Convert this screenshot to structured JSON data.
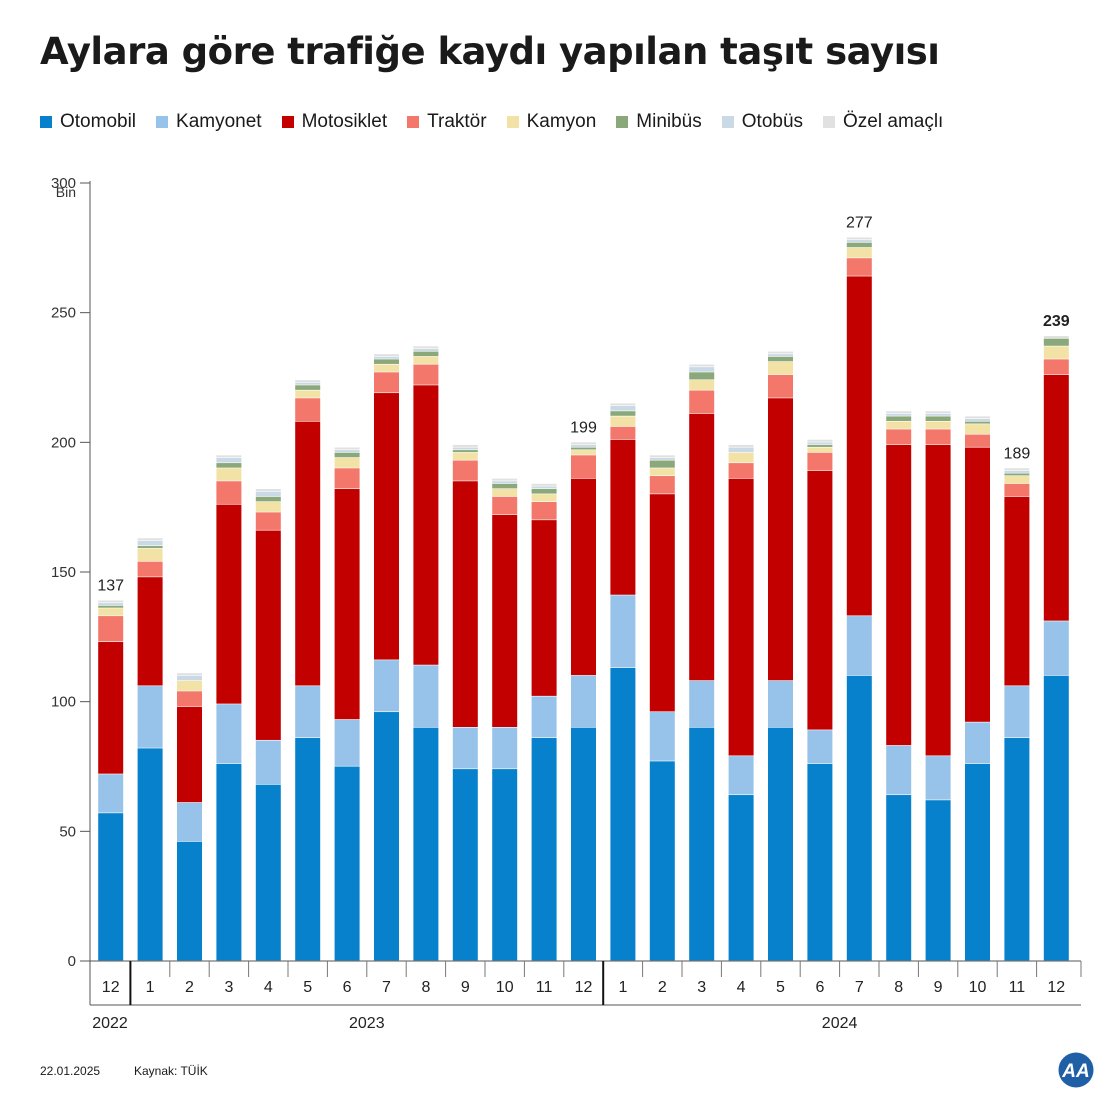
{
  "title": "Aylara göre trafiğe kaydı yapılan taşıt sayısı",
  "legend": [
    {
      "name": "Otomobil",
      "color": "#0781cc"
    },
    {
      "name": "Kamyonet",
      "color": "#97c3ea"
    },
    {
      "name": "Motosiklet",
      "color": "#c20000"
    },
    {
      "name": "Traktör",
      "color": "#f3776a"
    },
    {
      "name": "Kamyon",
      "color": "#f2e2a6"
    },
    {
      "name": "Minibüs",
      "color": "#8aa87a"
    },
    {
      "name": "Otobüs",
      "color": "#c9d9e6"
    },
    {
      "name": "Özel amaçlı",
      "color": "#e1e1e1"
    }
  ],
  "footer": {
    "date": "22.01.2025",
    "source": "Kaynak: TÜİK",
    "logo_text": "AA"
  },
  "chart_data": {
    "type": "bar",
    "stacked": true,
    "y_unit": "Bin",
    "ylim": [
      0,
      300
    ],
    "yticks": [
      0,
      50,
      100,
      150,
      200,
      250,
      300
    ],
    "grid": false,
    "legend_position": "top",
    "categories": [
      "12",
      "1",
      "2",
      "3",
      "4",
      "5",
      "6",
      "7",
      "8",
      "9",
      "10",
      "11",
      "12",
      "1",
      "2",
      "3",
      "4",
      "5",
      "6",
      "7",
      "8",
      "9",
      "10",
      "11",
      "12"
    ],
    "year_groups": [
      {
        "label": "2022",
        "start": 0,
        "end": 0
      },
      {
        "label": "2023",
        "start": 1,
        "end": 12
      },
      {
        "label": "2024",
        "start": 13,
        "end": 24
      }
    ],
    "total_labels": [
      {
        "index": 0,
        "text": "137",
        "bold": false
      },
      {
        "index": 12,
        "text": "199",
        "bold": false
      },
      {
        "index": 19,
        "text": "277",
        "bold": false
      },
      {
        "index": 23,
        "text": "189",
        "bold": false
      },
      {
        "index": 24,
        "text": "239",
        "bold": true
      }
    ],
    "series": [
      {
        "name": "Otomobil",
        "color": "#0781cc",
        "values": [
          57,
          82,
          46,
          76,
          68,
          86,
          75,
          96,
          90,
          74,
          74,
          86,
          90,
          113,
          77,
          90,
          64,
          90,
          76,
          110,
          64,
          62,
          76,
          86,
          110
        ]
      },
      {
        "name": "Kamyonet",
        "color": "#97c3ea",
        "values": [
          15,
          24,
          15,
          23,
          17,
          20,
          18,
          20,
          24,
          16,
          16,
          16,
          20,
          28,
          19,
          18,
          15,
          18,
          13,
          23,
          19,
          17,
          16,
          20,
          21
        ]
      },
      {
        "name": "Motosiklet",
        "color": "#c20000",
        "values": [
          51,
          42,
          37,
          77,
          81,
          102,
          89,
          103,
          108,
          95,
          82,
          68,
          76,
          60,
          84,
          103,
          107,
          109,
          100,
          131,
          116,
          120,
          106,
          73,
          95
        ]
      },
      {
        "name": "Traktör",
        "color": "#f3776a",
        "values": [
          10,
          6,
          6,
          9,
          7,
          9,
          8,
          8,
          8,
          8,
          7,
          7,
          9,
          5,
          7,
          9,
          6,
          9,
          7,
          7,
          6,
          6,
          5,
          5,
          6
        ]
      },
      {
        "name": "Kamyon",
        "color": "#f2e2a6",
        "values": [
          3,
          5,
          4,
          5,
          4,
          3,
          4,
          3,
          3,
          3,
          3,
          3,
          2,
          4,
          3,
          4,
          4,
          5,
          2,
          4,
          3,
          3,
          4,
          3,
          5
        ]
      },
      {
        "name": "Minibüs",
        "color": "#8aa87a",
        "values": [
          1,
          1,
          0,
          2,
          2,
          2,
          2,
          2,
          2,
          1,
          2,
          2,
          1,
          2,
          3,
          3,
          0,
          2,
          1,
          2,
          2,
          2,
          1,
          1,
          3
        ]
      },
      {
        "name": "Otobüs",
        "color": "#c9d9e6",
        "values": [
          1,
          2,
          2,
          2,
          2,
          1,
          1,
          1,
          1,
          1,
          1,
          1,
          1,
          2,
          1,
          2,
          2,
          1,
          1,
          1,
          1,
          1,
          1,
          1,
          0
        ]
      },
      {
        "name": "Özel amaçlı",
        "color": "#e1e1e1",
        "values": [
          1,
          1,
          1,
          1,
          1,
          1,
          1,
          1,
          1,
          1,
          1,
          1,
          1,
          1,
          1,
          1,
          1,
          1,
          1,
          1,
          1,
          1,
          1,
          1,
          1
        ]
      }
    ]
  }
}
